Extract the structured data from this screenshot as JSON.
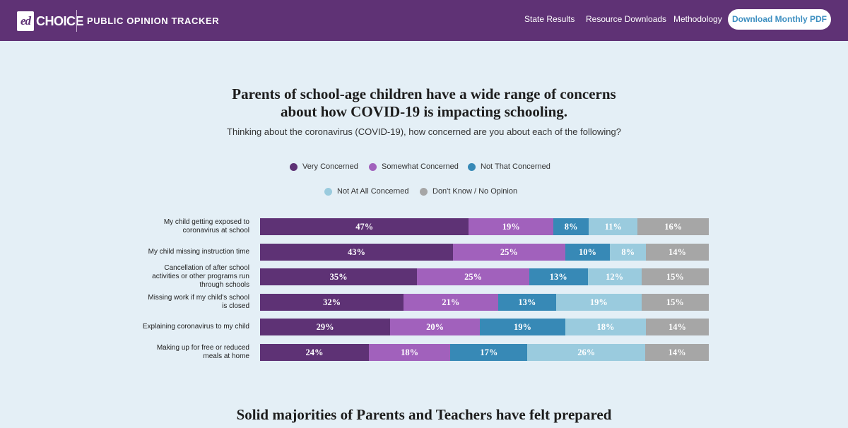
{
  "header": {
    "logo_ed": "ed",
    "logo_choice": "CHOICE",
    "title": "PUBLIC OPINION TRACKER",
    "nav": [
      "State Results",
      "Resource Downloads",
      "Methodology"
    ],
    "download_label": "Download Monthly PDF"
  },
  "colors": {
    "header_bg": "#5f3275",
    "page_bg": "#e4eff6"
  },
  "chart_data": {
    "type": "bar",
    "orientation": "horizontal",
    "stacked": "100%",
    "title": "Parents of school-age children have a wide range of concerns about how COVID-19 is impacting schooling.",
    "title_lines": [
      "Parents of school-age children have a wide range of concerns",
      "about how COVID-19 is impacting schooling."
    ],
    "subtitle": "Thinking about the coronavirus (COVID-19), how concerned are you about each of the following?",
    "legend_position": "top",
    "categories": [
      "My child getting exposed to coronavirus at school",
      "My child missing instruction time",
      "Cancellation of after school activities or other programs run through schools",
      "Missing work if my child's school is closed",
      "Explaining coronavirus to my child",
      "Making up for free or reduced meals at home"
    ],
    "series": [
      {
        "name": "Very Concerned",
        "color": "#5e3275",
        "values": [
          47,
          43,
          35,
          32,
          29,
          24
        ]
      },
      {
        "name": "Somewhat Concerned",
        "color": "#a161bc",
        "values": [
          19,
          25,
          25,
          21,
          20,
          18
        ]
      },
      {
        "name": "Not That Concerned",
        "color": "#3789b6",
        "values": [
          8,
          10,
          13,
          13,
          19,
          17
        ]
      },
      {
        "name": "Not At All Concerned",
        "color": "#9acbde",
        "values": [
          11,
          8,
          12,
          19,
          18,
          26
        ]
      },
      {
        "name": "Don't Know / No Opinion",
        "color": "#a6a6a6",
        "values": [
          16,
          14,
          15,
          15,
          14,
          14
        ]
      }
    ],
    "value_suffix": "%"
  },
  "next_section": {
    "title": "Solid majorities of Parents and Teachers have felt prepared"
  }
}
